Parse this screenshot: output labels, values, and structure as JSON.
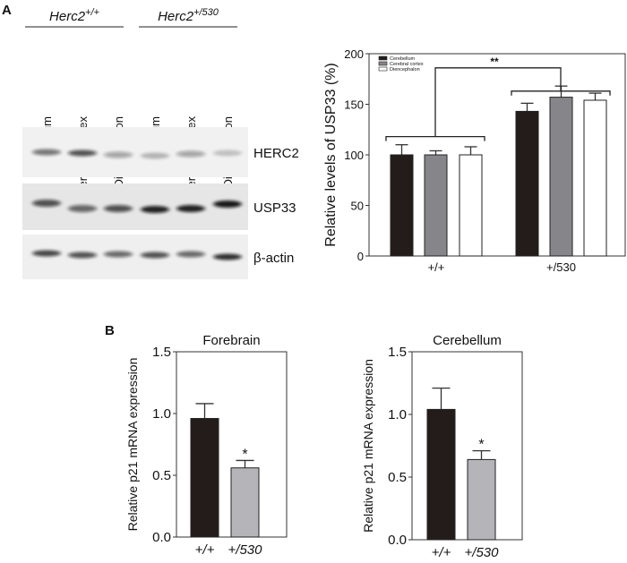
{
  "panel_a": {
    "label": "A",
    "blot": {
      "groups": [
        {
          "name": "Herc2",
          "superscript": "+/+"
        },
        {
          "name": "Herc2",
          "superscript": "+/530"
        }
      ],
      "lanes": [
        "Cerebellum",
        "Cerebral cortex",
        "Diencephalon",
        "Cerebellum",
        "Cerebral cortex",
        "Diencephalon"
      ],
      "rows": [
        "HERC2",
        "USP33",
        "β-actin"
      ]
    }
  },
  "panel_b": {
    "label": "B"
  },
  "chart_data": [
    {
      "type": "bar",
      "ylabel": "Relative levels of USP33 (%)",
      "categories": [
        "+/+",
        "+/530"
      ],
      "ylim": [
        0,
        200
      ],
      "yticks": [
        "0",
        "50",
        "100",
        "150",
        "200"
      ],
      "legend_position": "top-left",
      "series": [
        {
          "name": "Cerebellum",
          "color": "#231c1a",
          "values": [
            100,
            143
          ],
          "error": [
            10,
            8
          ]
        },
        {
          "name": "Cerebral cortex",
          "color": "#85858a",
          "values": [
            100,
            157
          ],
          "error": [
            4,
            11
          ]
        },
        {
          "name": "Diencephalon",
          "color": "#ffffff",
          "values": [
            100,
            154
          ],
          "error": [
            8,
            7
          ]
        }
      ],
      "annotation": "**"
    },
    {
      "type": "bar",
      "title": "Forebrain",
      "ylabel": "Relative p21 mRNA expression",
      "categories": [
        "+/+",
        "+/530"
      ],
      "values": [
        0.96,
        0.56
      ],
      "error": [
        0.12,
        0.06
      ],
      "colors": [
        "#231c1a",
        "#b4b4b9"
      ],
      "ylim": [
        0,
        1.5
      ],
      "yticks": [
        "0.0",
        "0.5",
        "1.0",
        "1.5"
      ],
      "annotations": [
        "",
        "*"
      ]
    },
    {
      "type": "bar",
      "title": "Cerebellum",
      "ylabel": "Relative p21 mRNA expression",
      "categories": [
        "+/+",
        "+/530"
      ],
      "values": [
        1.04,
        0.64
      ],
      "error": [
        0.17,
        0.07
      ],
      "colors": [
        "#231c1a",
        "#b4b4b9"
      ],
      "ylim": [
        0,
        1.5
      ],
      "yticks": [
        "0.0",
        "0.5",
        "1.0",
        "1.5"
      ],
      "annotations": [
        "",
        "*"
      ]
    }
  ]
}
